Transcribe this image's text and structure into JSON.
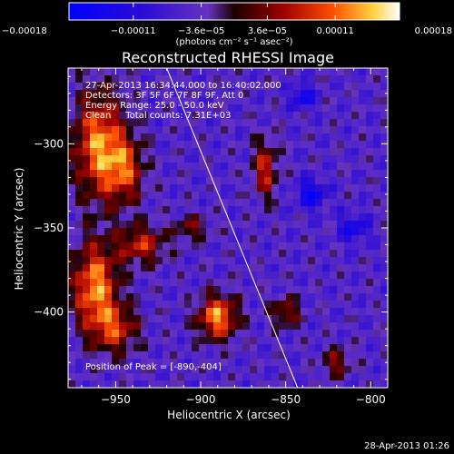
{
  "chart_data": {
    "type": "heatmap",
    "title": "Reconstructed RHESSI Image",
    "xlabel": "Heliocentric X (arcsec)",
    "ylabel": "Heliocentric Y (arcsec)",
    "xlim": [
      -978,
      -790
    ],
    "ylim": [
      -445,
      -255
    ],
    "x_ticks": [
      {
        "value": -950,
        "label": "−950"
      },
      {
        "value": -900,
        "label": "−900"
      },
      {
        "value": -850,
        "label": "−850"
      },
      {
        "value": -800,
        "label": "−800"
      }
    ],
    "y_ticks": [
      {
        "value": -300,
        "label": "−300"
      },
      {
        "value": -350,
        "label": "−350"
      },
      {
        "value": -400,
        "label": "−400"
      }
    ],
    "colorbar": {
      "range": [
        -0.00018,
        0.00018
      ],
      "ticks": [
        {
          "value": -0.00018,
          "label": "−0.00018"
        },
        {
          "value": -0.00011,
          "label": "−0.00011"
        },
        {
          "value": -3.6e-05,
          "label": "−3.6e−05"
        },
        {
          "value": 3.6e-05,
          "label": "3.6e−05"
        },
        {
          "value": 0.00011,
          "label": "0.00011"
        },
        {
          "value": 0.00018,
          "label": "0.00018"
        }
      ],
      "units_label": "(photons cm⁻² s⁻¹ asec⁻²)"
    },
    "info_lines": [
      "27-Apr-2013 16:34:44.000 to 16:40:02.000",
      "Detectors: 3F 5F 6F 7F 8F 9F, Att 0",
      "Energy Range: 25.0 - 50.0 keV",
      "Clean     Total counts: 7.31E+03"
    ],
    "peak_label": "Position of Peak = [-890,-404]",
    "peak": {
      "x": -890,
      "y": -404
    },
    "limb_line": [
      {
        "x": -920,
        "y": -255
      },
      {
        "x": -843,
        "y": -445
      }
    ],
    "grid": false,
    "sources": [
      {
        "x": -960,
        "y": -300,
        "amp": 0.00017,
        "sx": 10,
        "sy": 22
      },
      {
        "x": -962,
        "y": -385,
        "amp": 0.00018,
        "sx": 9,
        "sy": 18
      },
      {
        "x": -945,
        "y": -315,
        "amp": 0.00013,
        "sx": 8,
        "sy": 14
      },
      {
        "x": -935,
        "y": -360,
        "amp": 0.00012,
        "sx": 10,
        "sy": 8
      },
      {
        "x": -950,
        "y": -410,
        "amp": 0.00012,
        "sx": 9,
        "sy": 10
      },
      {
        "x": -890,
        "y": -403,
        "amp": 0.00018,
        "sx": 8,
        "sy": 9
      },
      {
        "x": -862,
        "y": -315,
        "amp": 0.00012,
        "sx": 5,
        "sy": 12
      },
      {
        "x": -850,
        "y": -400,
        "amp": 0.0001,
        "sx": 6,
        "sy": 6
      },
      {
        "x": -905,
        "y": -350,
        "amp": 8e-05,
        "sx": 7,
        "sy": 5
      },
      {
        "x": -820,
        "y": -430,
        "amp": 9e-05,
        "sx": 6,
        "sy": 6
      },
      {
        "x": -835,
        "y": -330,
        "amp": -0.00011,
        "sx": 6,
        "sy": 6
      },
      {
        "x": -840,
        "y": -272,
        "amp": -0.0001,
        "sx": 5,
        "sy": 5
      },
      {
        "x": -810,
        "y": -350,
        "amp": -9e-05,
        "sx": 6,
        "sy": 6
      }
    ]
  },
  "footer": {
    "timestamp": "28-Apr-2013 01:26"
  }
}
